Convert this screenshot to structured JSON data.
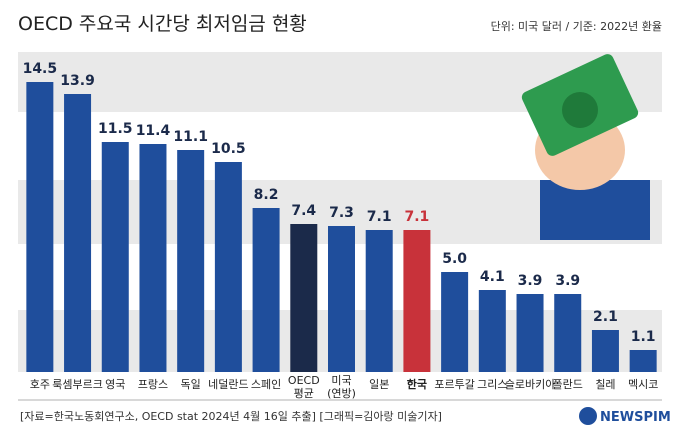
{
  "chart_data": {
    "type": "bar",
    "title": "OECD 주요국 시간당 최저임금 현황",
    "subtitle": "단위: 미국 달러 / 기준: 2022년 환율",
    "source": "[자료=한국노동회연구소, OECD stat 2024년 4월 16일 추출] [그래픽=김아랑 미술기자]",
    "logo": "NEWSPIM",
    "categories": [
      "호주",
      "룩셈부르크",
      "영국",
      "프랑스",
      "독일",
      "네덜란드",
      "스페인",
      "OECD 평균",
      "미국 (연방)",
      "일본",
      "한국",
      "포르투갈",
      "그리스",
      "슬로바키아",
      "폴란드",
      "칠레",
      "멕시코"
    ],
    "values": [
      14.5,
      13.9,
      11.5,
      11.4,
      11.1,
      10.5,
      8.2,
      7.4,
      7.3,
      7.1,
      7.1,
      5.0,
      4.1,
      3.9,
      3.9,
      2.1,
      1.1
    ],
    "value_labels": [
      "14.5",
      "13.9",
      "11.5",
      "11.4",
      "11.1",
      "10.5",
      "8.2",
      "7.4",
      "7.3",
      "7.1",
      "7.1",
      "5.0",
      "4.1",
      "3.9",
      "3.9",
      "2.1",
      "1.1"
    ],
    "colors": [
      "#1f4e9c",
      "#1f4e9c",
      "#1f4e9c",
      "#1f4e9c",
      "#1f4e9c",
      "#1f4e9c",
      "#1f4e9c",
      "#1b2a4a",
      "#1f4e9c",
      "#1f4e9c",
      "#c8323a",
      "#1f4e9c",
      "#1f4e9c",
      "#1f4e9c",
      "#1f4e9c",
      "#1f4e9c",
      "#1f4e9c"
    ],
    "ylim": [
      0,
      16
    ]
  }
}
